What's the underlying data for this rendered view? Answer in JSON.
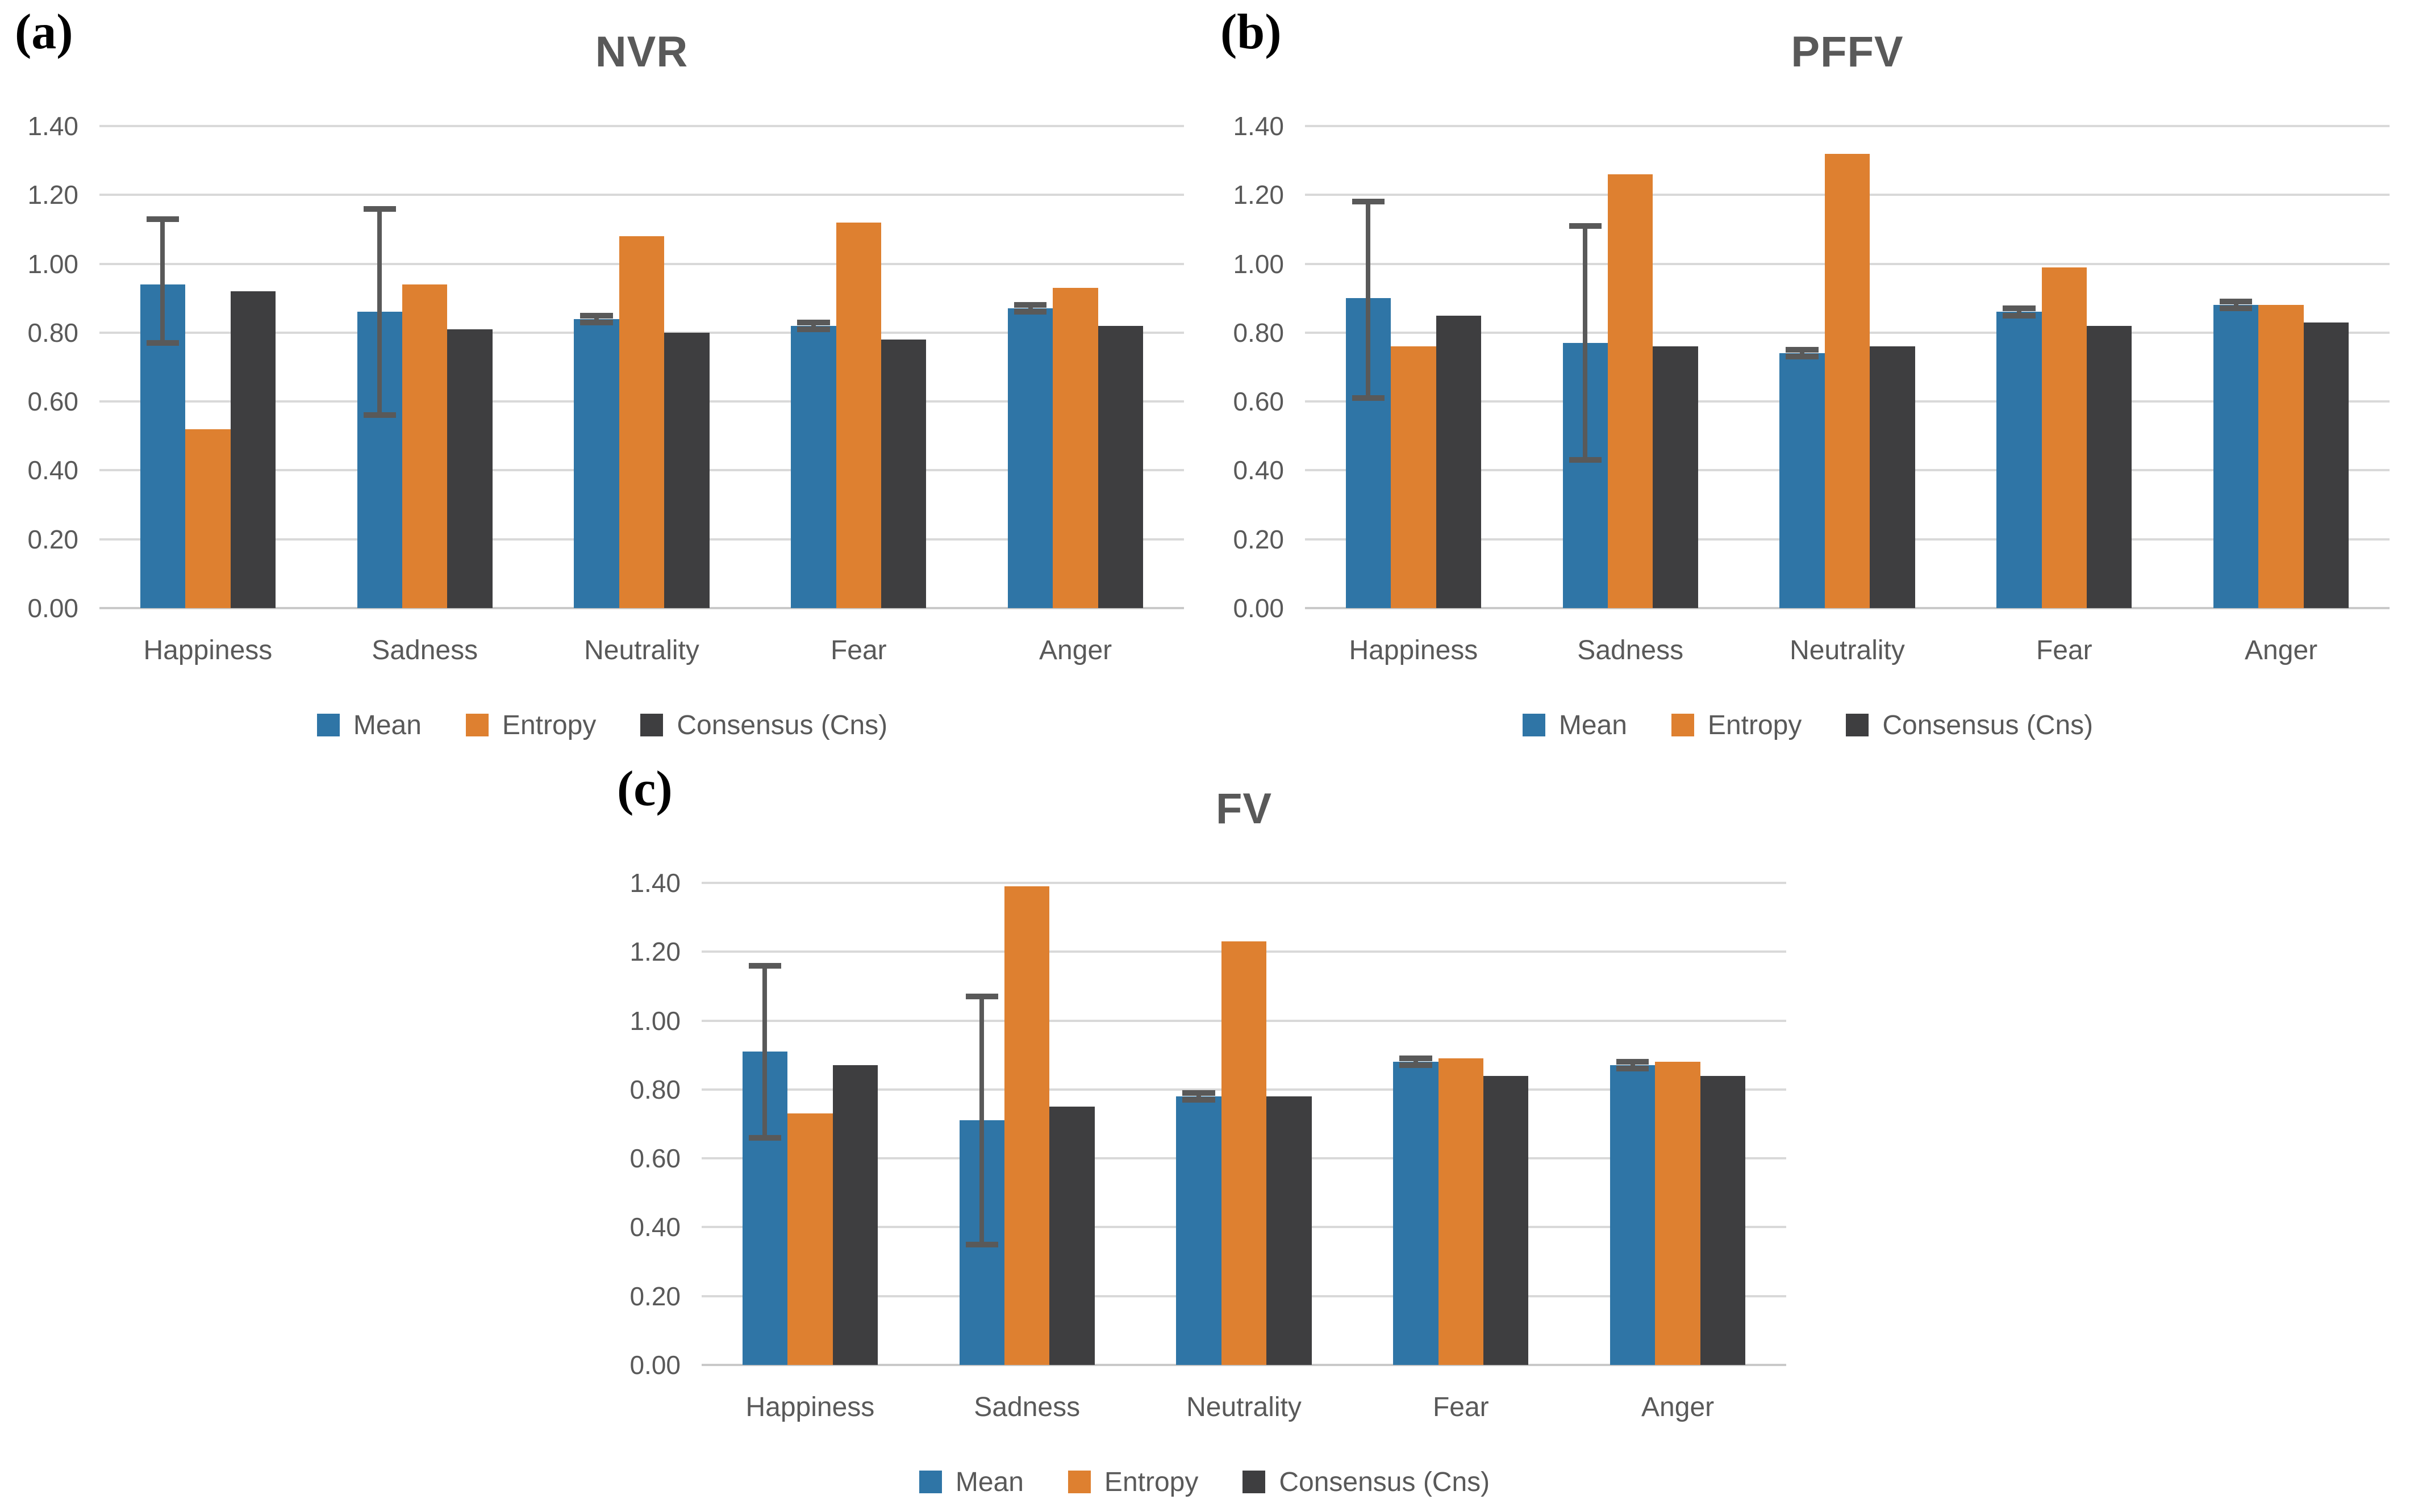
{
  "figure": {
    "background": "#ffffff",
    "colors": {
      "mean": "#2f75a6",
      "entropy": "#de8030",
      "consensus": "#3e3e40",
      "error_bar": "#595959",
      "gridline": "#d9d9d9",
      "axis_text": "#595959",
      "panel_label": "#000000"
    },
    "y_axis": {
      "min": 0,
      "max": 1.4,
      "ticks": [
        "1.40",
        "1.20",
        "1.00",
        "0.80",
        "0.60",
        "0.40",
        "0.20",
        "0.00"
      ]
    },
    "legend": {
      "items": [
        {
          "label": "Mean",
          "color_key": "mean"
        },
        {
          "label": "Entropy",
          "color_key": "entropy"
        },
        {
          "label": "Consensus (Cns)",
          "color_key": "consensus"
        }
      ]
    }
  },
  "chart_data": [
    {
      "id": "a",
      "panel_label": "(a)",
      "title": "NVR",
      "type": "bar",
      "ylim": [
        0,
        1.4
      ],
      "grid": true,
      "legend_position": "bottom",
      "categories": [
        "Happiness",
        "Sadness",
        "Neutrality",
        "Fear",
        "Anger"
      ],
      "series": [
        {
          "name": "Mean",
          "color_key": "mean",
          "values": [
            0.94,
            0.86,
            0.84,
            0.82,
            0.87
          ],
          "err_lo": [
            0.77,
            0.56,
            0.83,
            0.81,
            0.86
          ],
          "err_hi": [
            1.13,
            1.16,
            0.85,
            0.83,
            0.88
          ]
        },
        {
          "name": "Entropy",
          "color_key": "entropy",
          "values": [
            0.52,
            0.94,
            1.08,
            1.12,
            0.93
          ]
        },
        {
          "name": "Consensus (Cns)",
          "color_key": "consensus",
          "values": [
            0.92,
            0.81,
            0.8,
            0.78,
            0.82
          ]
        }
      ]
    },
    {
      "id": "b",
      "panel_label": "(b)",
      "title": "PFFV",
      "type": "bar",
      "ylim": [
        0,
        1.4
      ],
      "grid": true,
      "legend_position": "bottom",
      "categories": [
        "Happiness",
        "Sadness",
        "Neutrality",
        "Fear",
        "Anger"
      ],
      "series": [
        {
          "name": "Mean",
          "color_key": "mean",
          "values": [
            0.9,
            0.77,
            0.74,
            0.86,
            0.88
          ],
          "err_lo": [
            0.61,
            0.43,
            0.73,
            0.85,
            0.87
          ],
          "err_hi": [
            1.18,
            1.11,
            0.75,
            0.87,
            0.89
          ]
        },
        {
          "name": "Entropy",
          "color_key": "entropy",
          "values": [
            0.76,
            1.26,
            1.32,
            0.99,
            0.88
          ]
        },
        {
          "name": "Consensus (Cns)",
          "color_key": "consensus",
          "values": [
            0.85,
            0.76,
            0.76,
            0.82,
            0.83
          ]
        }
      ]
    },
    {
      "id": "c",
      "panel_label": "(c)",
      "title": "FV",
      "type": "bar",
      "ylim": [
        0,
        1.4
      ],
      "grid": true,
      "legend_position": "bottom",
      "categories": [
        "Happiness",
        "Sadness",
        "Neutrality",
        "Fear",
        "Anger"
      ],
      "series": [
        {
          "name": "Mean",
          "color_key": "mean",
          "values": [
            0.91,
            0.71,
            0.78,
            0.88,
            0.87
          ],
          "err_lo": [
            0.66,
            0.35,
            0.77,
            0.87,
            0.86
          ],
          "err_hi": [
            1.16,
            1.07,
            0.79,
            0.89,
            0.88
          ]
        },
        {
          "name": "Entropy",
          "color_key": "entropy",
          "values": [
            0.73,
            1.39,
            1.23,
            0.89,
            0.88
          ]
        },
        {
          "name": "Consensus (Cns)",
          "color_key": "consensus",
          "values": [
            0.87,
            0.75,
            0.78,
            0.84,
            0.84
          ]
        }
      ]
    }
  ]
}
